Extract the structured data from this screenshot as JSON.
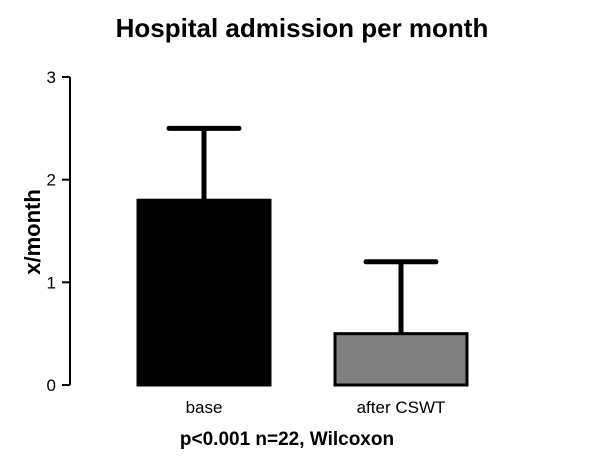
{
  "chart_data": {
    "type": "bar",
    "title": "Hospital admission per month",
    "ylabel": "x/month",
    "xlabel": "p<0.001 n=22, Wilcoxon",
    "categories": [
      "base",
      "after CSWT"
    ],
    "values": [
      1.8,
      0.5
    ],
    "error_upper": [
      2.5,
      1.2
    ],
    "ylim": [
      0,
      3
    ],
    "yticks": [
      "0",
      "1",
      "2",
      "3"
    ],
    "bar_colors": [
      "#000000",
      "#808080"
    ],
    "grid": false,
    "legend": "none"
  }
}
